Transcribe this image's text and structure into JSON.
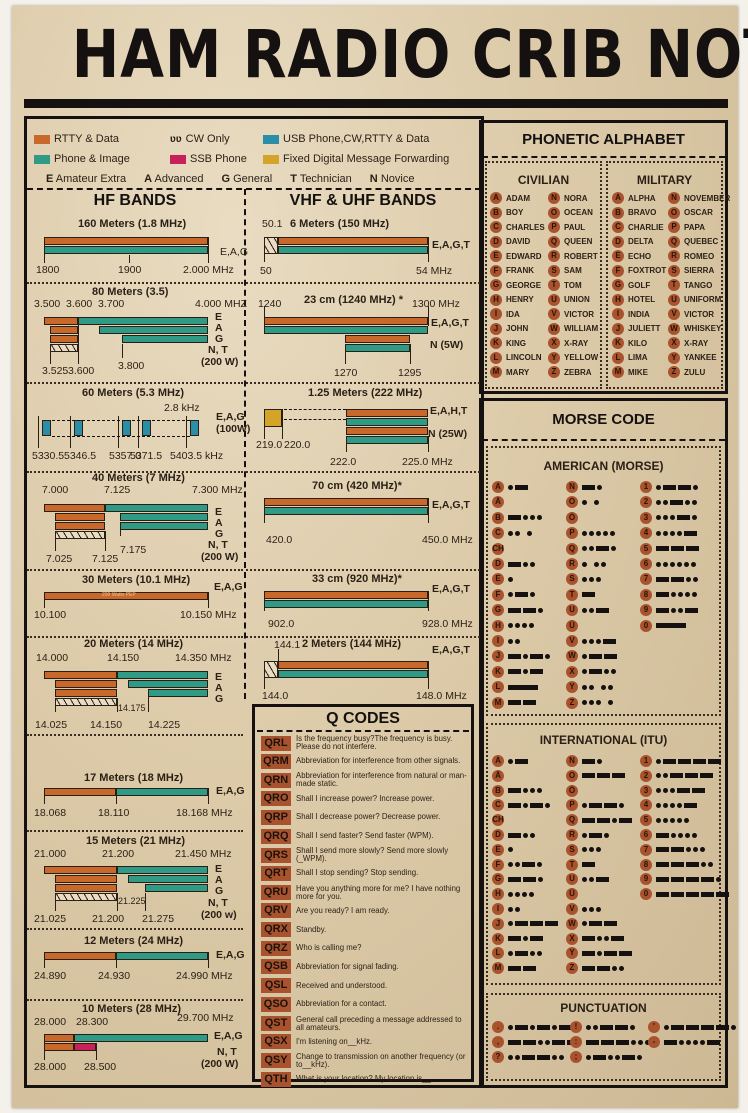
{
  "title": "HAM RADIO CRIB NOTES",
  "colors": {
    "rtty_data": "#c8682a",
    "phone_image": "#2f9a86",
    "usb_phone": "#2a8ea6",
    "ssb_phone": "#c8205a",
    "fixed_digital": "#d4a32a",
    "background": "#dccaa8",
    "ink": "#141110"
  },
  "legend": {
    "items": [
      {
        "label": "RTTY & Data",
        "swatch": "orange"
      },
      {
        "label": "CW Only",
        "swatch": "cw-icon"
      },
      {
        "label": "USB Phone,CW,RTTY & Data",
        "swatch": "blue"
      },
      {
        "label": "Phone & Image",
        "swatch": "teal"
      },
      {
        "label": "SSB Phone",
        "swatch": "pink"
      },
      {
        "label": "Fixed Digital Message Forwarding",
        "swatch": "gold"
      }
    ],
    "licenses": [
      {
        "key": "E",
        "label": "Amateur Extra"
      },
      {
        "key": "A",
        "label": "Advanced"
      },
      {
        "key": "G",
        "label": "General"
      },
      {
        "key": "T",
        "label": "Technician"
      },
      {
        "key": "N",
        "label": "Novice"
      }
    ]
  },
  "hf": {
    "title": "HF BANDS",
    "bands": [
      {
        "name": "160 Meters (1.8 MHz)",
        "labels": [
          "1800",
          "1900",
          "2.000 MHz"
        ],
        "classes": "E,A,G"
      },
      {
        "name": "80 Meters (3.5)",
        "top_labels": [
          "3.500",
          "3.600",
          "3.700",
          "4.000 MHZ"
        ],
        "bottom_labels": [
          "3.525",
          "3.600",
          "3.800"
        ],
        "classes": [
          "E",
          "A",
          "G",
          "N, T",
          "(200 W)"
        ]
      },
      {
        "name": "60 Meters (5.3 MHz)",
        "labels": [
          "5330.5",
          "5346.5",
          "5357.0",
          "5371.5",
          "5403.5 kHz"
        ],
        "spacing": "2.8 kHz",
        "classes": "E,A,G (100W)"
      },
      {
        "name": "40 Meters (7 MHz)",
        "top_labels": [
          "7.000",
          "7.125",
          "7.300 MHz"
        ],
        "bottom_labels": [
          "7.025",
          "7.125",
          "7.175"
        ],
        "classes": [
          "E",
          "A",
          "G",
          "N, T",
          "(200 W)"
        ]
      },
      {
        "name": "30 Meters (10.1 MHz)",
        "labels": [
          "10.100",
          "10.150 MHz"
        ],
        "note": "200 Watts PEP",
        "classes": "E,A,G"
      },
      {
        "name": "20 Meters (14 MHz)",
        "top_labels": [
          "14.000",
          "14.150",
          "14.350 MHz"
        ],
        "bottom_labels": [
          "14.025",
          "14.150",
          "14.175",
          "14.225"
        ],
        "classes": [
          "E",
          "A",
          "G"
        ]
      },
      {
        "name": "17 Meters (18 MHz)",
        "labels": [
          "18.068",
          "18.110",
          "18.168 MHz"
        ],
        "classes": "E,A,G"
      },
      {
        "name": "15 Meters (21 MHz)",
        "top_labels": [
          "21.000",
          "21.200",
          "21.450 MHz"
        ],
        "bottom_labels": [
          "21.025",
          "21.200",
          "21.225",
          "21.275"
        ],
        "classes": [
          "E",
          "A",
          "G",
          "N, T",
          "(200 w)"
        ]
      },
      {
        "name": "12 Meters (24 MHz)",
        "labels": [
          "24.890",
          "24.930",
          "24.990 MHz"
        ],
        "classes": "E,A,G"
      },
      {
        "name": "10 Meters (28 MHz)",
        "top_labels": [
          "28.000",
          "28.300",
          "29.700 MHz"
        ],
        "bottom_labels": [
          "28.000",
          "28.500"
        ],
        "classes": [
          "E,A,G",
          "N, T",
          "(200 W)"
        ]
      }
    ]
  },
  "vhf": {
    "title": "VHF & UHF BANDS",
    "bands": [
      {
        "name": "6 Meters (150 MHz)",
        "labels": [
          "50.1",
          "50",
          "54 MHz"
        ],
        "classes": "E,A,G,T"
      },
      {
        "name": "23 cm (1240 MHz) *",
        "labels": [
          "1240",
          "1300 MHz",
          "1270",
          "1295"
        ],
        "classes": [
          "E,A,G,T",
          "N (5W)"
        ]
      },
      {
        "name": "1.25 Meters (222 MHz)",
        "labels": [
          "219.0",
          "220.0",
          "222.0",
          "225.0 MHz"
        ],
        "classes": [
          "E,A,H,T",
          "N (25W)"
        ]
      },
      {
        "name": "70 cm (420 MHz)*",
        "labels": [
          "420.0",
          "450.0 MHz"
        ],
        "classes": "E,A,G,T"
      },
      {
        "name": "33 cm (920 MHz)*",
        "labels": [
          "902.0",
          "928.0 MHz"
        ],
        "classes": "E,A,G,T"
      },
      {
        "name": "2 Meters (144 MHz)",
        "labels": [
          "144.1",
          "144.0",
          "148.0 MHz"
        ],
        "classes": "E,A,G,T"
      }
    ]
  },
  "qcodes": {
    "title": "Q CODES",
    "items": [
      {
        "code": "QRL",
        "text": "Is the frequency busy?The frequency is busy. Please do not interfere."
      },
      {
        "code": "QRM",
        "text": "Abbreviation for interference from other signals."
      },
      {
        "code": "QRN",
        "text": "Abbreviation for interference from natural or man-made static."
      },
      {
        "code": "QRO",
        "text": "Shall I increase power? Increase power."
      },
      {
        "code": "QRP",
        "text": "Shall I decrease power? Decrease power."
      },
      {
        "code": "QRQ",
        "text": "Shall I send faster? Send faster (WPM)."
      },
      {
        "code": "QRS",
        "text": "Shall I send more slowly? Send more slowly (_WPM)."
      },
      {
        "code": "QRT",
        "text": "Shall I stop sending? Stop sending."
      },
      {
        "code": "QRU",
        "text": "Have you anything more for me? I have nothing more for you."
      },
      {
        "code": "QRV",
        "text": "Are you ready? I am ready."
      },
      {
        "code": "QRX",
        "text": "Standby."
      },
      {
        "code": "QRZ",
        "text": "Who is calling me?"
      },
      {
        "code": "QSB",
        "text": "Abbreviation for signal fading."
      },
      {
        "code": "QSL",
        "text": "Received and understood."
      },
      {
        "code": "QSO",
        "text": "Abbreviation for a contact."
      },
      {
        "code": "QST",
        "text": "General call preceding a message addressed to all amateurs."
      },
      {
        "code": "QSX",
        "text": "I'm listening on__kHz."
      },
      {
        "code": "QSY",
        "text": "Change to transmission on another frequency (or to__kHz)."
      },
      {
        "code": "QTH",
        "text": "What is your location? My location is__."
      }
    ]
  },
  "phonetic": {
    "title": "PHONETIC ALPHABET",
    "civilian": {
      "title": "CIVILIAN",
      "col1": [
        "ADAM",
        "BOY",
        "CHARLES",
        "DAVID",
        "EDWARD",
        "FRANK",
        "GEORGE",
        "HENRY",
        "IDA",
        "JOHN",
        "KING",
        "LINCOLN",
        "MARY"
      ],
      "col2": [
        "NORA",
        "OCEAN",
        "PAUL",
        "QUEEN",
        "ROBERT",
        "SAM",
        "TOM",
        "UNION",
        "VICTOR",
        "WILLIAM",
        "X-RAY",
        "YELLOW",
        "ZEBRA"
      ]
    },
    "military": {
      "title": "MILITARY",
      "col1": [
        "ALPHA",
        "BRAVO",
        "CHARLIE",
        "DELTA",
        "ECHO",
        "FOXTROT",
        "GOLF",
        "HOTEL",
        "INDIA",
        "JULIETT",
        "KILO",
        "LIMA",
        "MIKE"
      ],
      "col2": [
        "NOVEMBER",
        "OSCAR",
        "PAPA",
        "QUEBEC",
        "ROMEO",
        "SIERRA",
        "TANGO",
        "UNIFORM",
        "VICTOR",
        "WHISKEY",
        "X-RAY",
        "YANKEE",
        "ZULU"
      ]
    },
    "letters1": [
      "A",
      "B",
      "C",
      "D",
      "E",
      "F",
      "G",
      "H",
      "I",
      "J",
      "K",
      "L",
      "M"
    ],
    "letters2": [
      "N",
      "O",
      "P",
      "Q",
      "R",
      "S",
      "T",
      "U",
      "V",
      "W",
      "X",
      "Y",
      "Z"
    ]
  },
  "morse": {
    "title": "MORSE CODE",
    "american": {
      "title": "AMERICAN (MORSE)",
      "col1": [
        [
          "A",
          ".-"
        ],
        [
          "Ä",
          ""
        ],
        [
          "B",
          "-..."
        ],
        [
          "C",
          ".. ."
        ],
        [
          "CH",
          ""
        ],
        [
          "D",
          "-.."
        ],
        [
          "E",
          "."
        ],
        [
          "F",
          ".-."
        ],
        [
          "G",
          "--."
        ],
        [
          "H",
          "...."
        ],
        [
          "I",
          ".."
        ],
        [
          "J",
          "-.-."
        ],
        [
          "K",
          "-.-"
        ],
        [
          "L",
          "L"
        ],
        [
          "M",
          "--"
        ]
      ],
      "col2": [
        [
          "N",
          "-."
        ],
        [
          "O",
          ". ."
        ],
        [
          "Ö",
          ""
        ],
        [
          "P",
          "....."
        ],
        [
          "Q",
          "..-."
        ],
        [
          "R",
          ". .."
        ],
        [
          "S",
          "..."
        ],
        [
          "T",
          "-"
        ],
        [
          "U",
          "..-"
        ],
        [
          "Ü",
          ""
        ],
        [
          "V",
          "...-"
        ],
        [
          "W",
          ".--"
        ],
        [
          "X",
          ".-.."
        ],
        [
          "Y",
          ".. .."
        ],
        [
          "Z",
          "... ."
        ]
      ],
      "col3": [
        [
          "1",
          ".--."
        ],
        [
          "2",
          "..-.."
        ],
        [
          "3",
          "...-."
        ],
        [
          "4",
          "....-"
        ],
        [
          "5",
          "---"
        ],
        [
          "6",
          "......"
        ],
        [
          "7",
          "--.."
        ],
        [
          "8",
          "-...."
        ],
        [
          "9",
          "-..-"
        ],
        [
          "0",
          "L"
        ]
      ]
    },
    "international": {
      "title": "INTERNATIONAL (ITU)",
      "col1": [
        [
          "A",
          ".-"
        ],
        [
          "Ä",
          ""
        ],
        [
          "B",
          "-..."
        ],
        [
          "C",
          "-.-."
        ],
        [
          "CH",
          ""
        ],
        [
          "D",
          "-.."
        ],
        [
          "E",
          "."
        ],
        [
          "F",
          "..-."
        ],
        [
          "G",
          "--."
        ],
        [
          "H",
          "...."
        ],
        [
          "I",
          ".."
        ],
        [
          "J",
          ".---"
        ],
        [
          "K",
          "-.-"
        ],
        [
          "L",
          ".-.."
        ],
        [
          "M",
          "--"
        ]
      ],
      "col2": [
        [
          "N",
          "-."
        ],
        [
          "O",
          "---"
        ],
        [
          "Ö",
          ""
        ],
        [
          "P",
          ".--."
        ],
        [
          "Q",
          "--.-"
        ],
        [
          "R",
          ".-."
        ],
        [
          "S",
          "..."
        ],
        [
          "T",
          "-"
        ],
        [
          "U",
          "..-"
        ],
        [
          "Ü",
          ""
        ],
        [
          "V",
          "..."
        ],
        [
          "W",
          ".--"
        ],
        [
          "X",
          "-..-"
        ],
        [
          "Y",
          "-.--"
        ],
        [
          "Z",
          "--.."
        ]
      ],
      "col3": [
        [
          "1",
          ".----"
        ],
        [
          "2",
          "..---"
        ],
        [
          "3",
          "...--"
        ],
        [
          "4",
          "....-"
        ],
        [
          "5",
          "....."
        ],
        [
          "6",
          "-...."
        ],
        [
          "7",
          "--..."
        ],
        [
          "8",
          "---.."
        ],
        [
          "9",
          "----."
        ],
        [
          "0",
          "-----"
        ]
      ]
    },
    "punctuation": {
      "title": "PUNCTUATION",
      "items": [
        [
          ".",
          ".-.-.-"
        ],
        [
          "!",
          "..--."
        ],
        [
          "'",
          ".----."
        ],
        [
          ",",
          "--..--"
        ],
        [
          ":",
          "---..."
        ],
        [
          "-",
          "-....-"
        ],
        [
          "?",
          "..--.."
        ],
        [
          ";",
          ".-..-."
        ]
      ]
    }
  }
}
